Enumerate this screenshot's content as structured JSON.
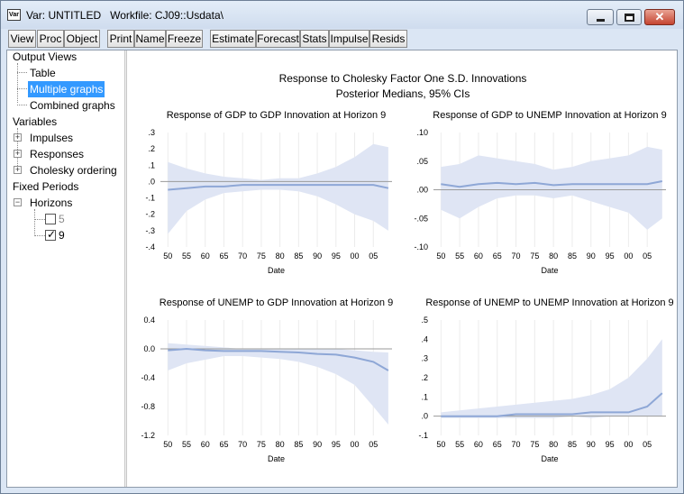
{
  "window": {
    "icon_label": "Var",
    "title": "Var: UNTITLED   Workfile: CJ09::Usdata\\",
    "close_glyph": "✕"
  },
  "toolbar": [
    "View",
    "Proc",
    "Object",
    "Print",
    "Name",
    "Freeze",
    "Estimate",
    "Forecast",
    "Stats",
    "Impulse",
    "Resids"
  ],
  "tree": {
    "output_views": "Output Views",
    "table": "Table",
    "multiple_graphs": "Multiple graphs",
    "combined_graphs": "Combined graphs",
    "variables": "Variables",
    "impulses": "Impulses",
    "responses": "Responses",
    "cholesky_ordering": "Cholesky ordering",
    "fixed_periods": "Fixed Periods",
    "horizons": "Horizons",
    "horizon_5": "5",
    "horizon_9": "9",
    "expander_plus": "+",
    "expander_minus": "−",
    "checkmark": "✓"
  },
  "graph": {
    "title_line1": "Response to Cholesky Factor One S.D. Innovations",
    "title_line2": "Posterior Medians, 95% CIs"
  },
  "chart_data": [
    {
      "type": "area",
      "title": "Response of GDP to GDP Innovation at Horizon 9",
      "xlabel": "Date",
      "x_ticks": [
        "50",
        "55",
        "60",
        "65",
        "70",
        "75",
        "80",
        "85",
        "90",
        "95",
        "00",
        "05"
      ],
      "y_ticks": [
        ".3",
        ".2",
        ".1",
        ".0",
        "-.1",
        "-.2",
        "-.3",
        "-.4"
      ],
      "ylim": [
        -0.4,
        0.3
      ],
      "x": [
        1950,
        1955,
        1960,
        1965,
        1970,
        1975,
        1980,
        1985,
        1990,
        1995,
        2000,
        2005,
        2009
      ],
      "median": [
        -0.05,
        -0.04,
        -0.03,
        -0.03,
        -0.02,
        -0.02,
        -0.02,
        -0.02,
        -0.02,
        -0.02,
        -0.02,
        -0.02,
        -0.04
      ],
      "lower": [
        -0.32,
        -0.18,
        -0.11,
        -0.07,
        -0.06,
        -0.05,
        -0.05,
        -0.06,
        -0.09,
        -0.14,
        -0.2,
        -0.24,
        -0.3
      ],
      "upper": [
        0.12,
        0.08,
        0.05,
        0.03,
        0.02,
        0.01,
        0.02,
        0.02,
        0.05,
        0.09,
        0.15,
        0.23,
        0.21
      ]
    },
    {
      "type": "area",
      "title": "Response of GDP to UNEMP Innovation at Horizon 9",
      "xlabel": "Date",
      "x_ticks": [
        "50",
        "55",
        "60",
        "65",
        "70",
        "75",
        "80",
        "85",
        "90",
        "95",
        "00",
        "05"
      ],
      "y_ticks": [
        ".10",
        ".05",
        ".00",
        "-.05",
        "-.10"
      ],
      "ylim": [
        -0.1,
        0.1
      ],
      "x": [
        1950,
        1955,
        1960,
        1965,
        1970,
        1975,
        1980,
        1985,
        1990,
        1995,
        2000,
        2005,
        2009
      ],
      "median": [
        0.01,
        0.005,
        0.01,
        0.012,
        0.01,
        0.012,
        0.008,
        0.01,
        0.01,
        0.01,
        0.01,
        0.01,
        0.015
      ],
      "lower": [
        -0.035,
        -0.05,
        -0.03,
        -0.015,
        -0.01,
        -0.01,
        -0.015,
        -0.01,
        -0.02,
        -0.03,
        -0.04,
        -0.07,
        -0.05
      ],
      "upper": [
        0.04,
        0.045,
        0.06,
        0.055,
        0.05,
        0.045,
        0.035,
        0.04,
        0.05,
        0.055,
        0.06,
        0.075,
        0.07
      ]
    },
    {
      "type": "area",
      "title": "Response of UNEMP to GDP Innovation at Horizon 9",
      "xlabel": "Date",
      "x_ticks": [
        "50",
        "55",
        "60",
        "65",
        "70",
        "75",
        "80",
        "85",
        "90",
        "95",
        "00",
        "05"
      ],
      "y_ticks": [
        "0.4",
        "0.0",
        "-0.4",
        "-0.8",
        "-1.2"
      ],
      "ylim": [
        -1.2,
        0.4
      ],
      "x": [
        1950,
        1955,
        1960,
        1965,
        1970,
        1975,
        1980,
        1985,
        1990,
        1995,
        2000,
        2005,
        2009
      ],
      "median": [
        -0.02,
        0.0,
        -0.02,
        -0.03,
        -0.03,
        -0.03,
        -0.04,
        -0.05,
        -0.07,
        -0.08,
        -0.12,
        -0.18,
        -0.3
      ],
      "lower": [
        -0.3,
        -0.2,
        -0.15,
        -0.1,
        -0.1,
        -0.12,
        -0.14,
        -0.18,
        -0.25,
        -0.35,
        -0.5,
        -0.8,
        -1.05
      ],
      "upper": [
        0.08,
        0.06,
        0.04,
        0.02,
        0.0,
        0.0,
        0.0,
        0.0,
        0.0,
        0.0,
        -0.02,
        -0.04,
        -0.05
      ]
    },
    {
      "type": "area",
      "title": "Response of UNEMP to UNEMP Innovation at Horizon 9",
      "xlabel": "Date",
      "x_ticks": [
        "50",
        "55",
        "60",
        "65",
        "70",
        "75",
        "80",
        "85",
        "90",
        "95",
        "00",
        "05"
      ],
      "y_ticks": [
        ".5",
        ".4",
        ".3",
        ".2",
        ".1",
        ".0",
        "-.1"
      ],
      "ylim": [
        -0.1,
        0.5
      ],
      "x": [
        1950,
        1955,
        1960,
        1965,
        1970,
        1975,
        1980,
        1985,
        1990,
        1995,
        2000,
        2005,
        2009
      ],
      "median": [
        0.0,
        0.0,
        0.0,
        0.0,
        0.01,
        0.01,
        0.01,
        0.01,
        0.02,
        0.02,
        0.02,
        0.05,
        0.12
      ],
      "lower": [
        -0.01,
        -0.01,
        -0.01,
        -0.01,
        -0.01,
        -0.01,
        -0.01,
        0.0,
        -0.01,
        0.0,
        0.0,
        0.0,
        0.0
      ],
      "upper": [
        0.02,
        0.03,
        0.04,
        0.05,
        0.06,
        0.07,
        0.08,
        0.09,
        0.11,
        0.14,
        0.2,
        0.3,
        0.4
      ]
    }
  ]
}
